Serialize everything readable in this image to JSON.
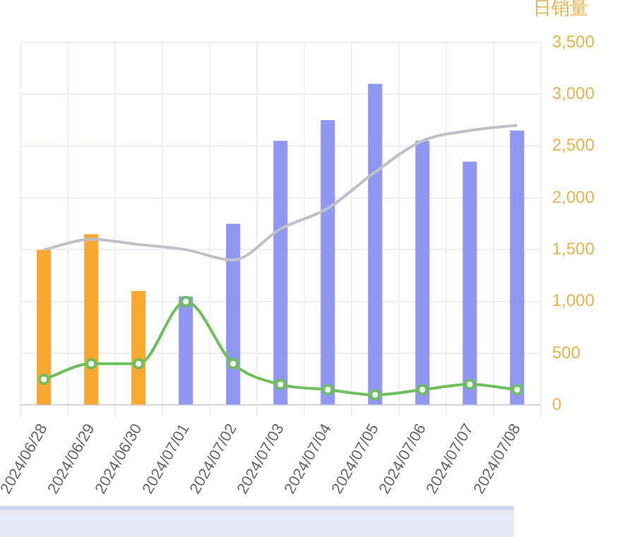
{
  "chart_data": {
    "type": "bar",
    "ylabel": "日销量",
    "categories": [
      "2024/06/28",
      "2024/06/29",
      "2024/06/30",
      "2024/07/01",
      "2024/07/02",
      "2024/07/03",
      "2024/07/04",
      "2024/07/05",
      "2024/07/06",
      "2024/07/07",
      "2024/07/08"
    ],
    "series": [
      {
        "colors": [
          "#f9a832",
          "#f9a832",
          "#f9a832",
          "#8f97f0",
          "#8f97f0",
          "#8f97f0",
          "#8f97f0",
          "#8f97f0",
          "#8f97f0",
          "#8f97f0",
          "#8f97f0"
        ],
        "values": [
          1500,
          1650,
          1100,
          1050,
          1750,
          2550,
          2750,
          3100,
          2550,
          2350,
          2650
        ]
      },
      {
        "type": "line",
        "color": "#c0c0c8",
        "marker": "none",
        "values": [
          1500,
          1600,
          1550,
          1500,
          1400,
          1700,
          1900,
          2250,
          2550,
          2650,
          2700
        ]
      },
      {
        "type": "line",
        "color": "#6cbf5a",
        "marker": "circle",
        "values": [
          250,
          400,
          400,
          1000,
          400,
          200,
          150,
          100,
          150,
          200,
          150
        ]
      }
    ],
    "ylim": [
      0,
      3500
    ],
    "yticks": [
      0,
      500,
      {
        "value": 1000,
        "label": "1,000"
      },
      {
        "value": 1500,
        "label": "1,500"
      },
      {
        "value": 2000,
        "label": "2,000"
      },
      {
        "value": 2500,
        "label": "2,500"
      },
      {
        "value": 3000,
        "label": "3,000"
      },
      {
        "value": 3500,
        "label": "3,500"
      }
    ],
    "grid": true,
    "legend": false
  }
}
